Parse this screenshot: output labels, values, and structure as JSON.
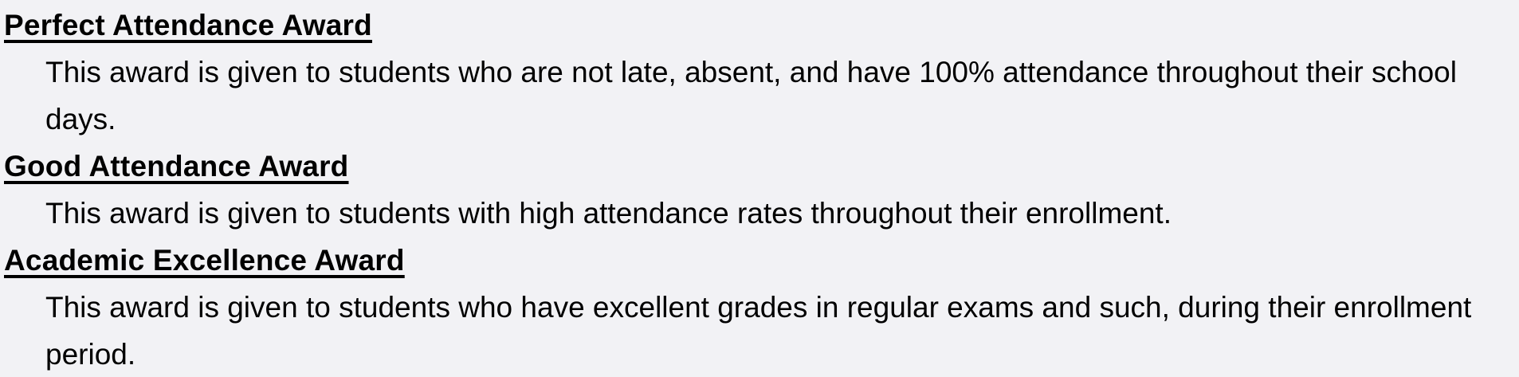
{
  "page": {
    "background_color": "#f2f2f5",
    "text_color": "#000000"
  },
  "awards": [
    {
      "title": "Perfect Attendance Award",
      "description": "This award is given to students who are not late, absent, and have 100% attendance throughout their school days."
    },
    {
      "title": "Good Attendance Award",
      "description": "This award is given to students with high attendance rates throughout their enrollment."
    },
    {
      "title": "Academic Excellence Award",
      "description": "This award is given to students who have excellent grades in regular exams and such, during their enrollment period."
    }
  ]
}
